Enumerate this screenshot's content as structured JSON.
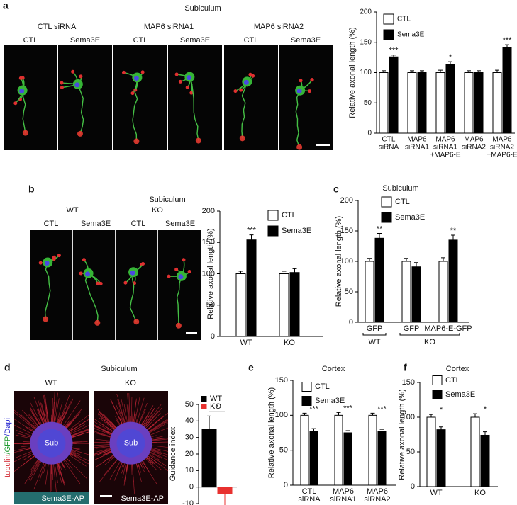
{
  "figure": {
    "a": {
      "letter": "a",
      "title": "Subiculum",
      "groups": [
        "CTL siRNA",
        "MAP6 siRNA1",
        "MAP6 siRNA2"
      ],
      "conditions": [
        "CTL",
        "Sema3E",
        "CTL",
        "Sema3E",
        "CTL",
        "Sema3E"
      ]
    },
    "b": {
      "letter": "b",
      "title": "Subiculum",
      "groups": [
        "WT",
        "KO"
      ],
      "conditions": [
        "CTL",
        "Sema3E",
        "CTL",
        "Sema3E"
      ]
    },
    "c": {
      "letter": "c"
    },
    "d": {
      "letter": "d",
      "title": "Subiculum",
      "groups": [
        "WT",
        "KO"
      ],
      "center_labels": [
        "Sub",
        "Sub"
      ],
      "bottom_labels": [
        "Sema3E-AP",
        "Sema3E-AP"
      ],
      "stain": [
        "tubulin",
        "/GFP",
        "/Dapi"
      ]
    },
    "e": {
      "letter": "e"
    },
    "f": {
      "letter": "f"
    }
  },
  "chart_data": [
    {
      "type": "bar",
      "ylabel": "Relative axonal length (%)",
      "categories": [
        [
          "CTL",
          "siRNA"
        ],
        [
          "MAP6",
          "siRNA1"
        ],
        [
          "MAP6",
          "siRNA1",
          "+MAP6-E"
        ],
        [
          "MAP6",
          "siRNA2"
        ],
        [
          "MAP6",
          "siRNA2",
          "+MAP6-E"
        ]
      ],
      "series": [
        {
          "name": "CTL",
          "color": "#ffffff",
          "values": [
            100,
            100,
            100,
            100,
            100
          ],
          "errors": [
            3,
            3,
            4,
            3,
            4
          ]
        },
        {
          "name": "Sema3E",
          "color": "#000000",
          "values": [
            126,
            101,
            113,
            100,
            141
          ],
          "errors": [
            3,
            2,
            5,
            3,
            5
          ]
        }
      ],
      "significance": [
        "***",
        null,
        "*",
        null,
        "***"
      ],
      "ylim": [
        0,
        200
      ],
      "yticks": [
        0,
        50,
        100,
        150,
        200
      ]
    },
    {
      "type": "bar",
      "ylabel": "Relative axonal length (%)",
      "categories": [
        [
          "WT"
        ],
        [
          "KO"
        ]
      ],
      "series": [
        {
          "name": "CTL",
          "color": "#ffffff",
          "values": [
            100,
            100
          ],
          "errors": [
            4,
            4
          ]
        },
        {
          "name": "Sema3E",
          "color": "#000000",
          "values": [
            154,
            102
          ],
          "errors": [
            8,
            6
          ]
        }
      ],
      "significance": [
        "***",
        null
      ],
      "ylim": [
        0,
        200
      ],
      "yticks": [
        0,
        50,
        100,
        150,
        200
      ]
    },
    {
      "type": "bar",
      "title": "Subiculum",
      "ylabel": "Relative axonal length (%)",
      "categories": [
        [
          "GFP"
        ],
        [
          "GFP"
        ],
        [
          "MAP6-E-GFP"
        ]
      ],
      "groups": [
        "WT",
        "KO"
      ],
      "series": [
        {
          "name": "CTL",
          "color": "#ffffff",
          "values": [
            100,
            100,
            100
          ],
          "errors": [
            5,
            5,
            6
          ]
        },
        {
          "name": "Sema3E",
          "color": "#000000",
          "values": [
            138,
            91,
            135
          ],
          "errors": [
            8,
            7,
            8
          ]
        }
      ],
      "significance": [
        "**",
        null,
        "**"
      ],
      "ylim": [
        0,
        200
      ],
      "yticks": [
        0,
        50,
        100,
        150,
        200
      ]
    },
    {
      "type": "bar",
      "ylabel": "Guidance index",
      "series": [
        {
          "name": "WT",
          "color": "#000000",
          "values": [
            35
          ],
          "errors": [
            8
          ]
        },
        {
          "name": "KO",
          "color": "#e8312f",
          "values": [
            -4
          ],
          "errors": [
            8
          ]
        }
      ],
      "significance": [
        "*"
      ],
      "ylim": [
        -10,
        50
      ],
      "yticks": [
        -10,
        0,
        10,
        20,
        30,
        40,
        50
      ]
    },
    {
      "type": "bar",
      "title": "Cortex",
      "ylabel": "Relative axonal length (%)",
      "categories": [
        [
          "CTL",
          "siRNA"
        ],
        [
          "MAP6",
          "siRNA1"
        ],
        [
          "MAP6",
          "siRNA2"
        ]
      ],
      "series": [
        {
          "name": "CTL",
          "color": "#ffffff",
          "values": [
            100,
            100,
            100
          ],
          "errors": [
            3,
            4,
            3
          ]
        },
        {
          "name": "Sema3E",
          "color": "#000000",
          "values": [
            77,
            75,
            77
          ],
          "errors": [
            4,
            3,
            3
          ]
        }
      ],
      "significance": [
        "***",
        "***",
        "***"
      ],
      "ylim": [
        0,
        150
      ],
      "yticks": [
        0,
        50,
        100,
        150
      ]
    },
    {
      "type": "bar",
      "title": "Cortex",
      "ylabel": "Relative axonal length (%)",
      "categories": [
        [
          "WT"
        ],
        [
          "KO"
        ]
      ],
      "series": [
        {
          "name": "CTL",
          "color": "#ffffff",
          "values": [
            100,
            100
          ],
          "errors": [
            4,
            5
          ]
        },
        {
          "name": "Sema3E",
          "color": "#000000",
          "values": [
            82,
            74
          ],
          "errors": [
            4,
            5
          ]
        }
      ],
      "significance": [
        "*",
        "*"
      ],
      "ylim": [
        0,
        150
      ],
      "yticks": [
        0,
        50,
        100,
        150
      ]
    }
  ]
}
